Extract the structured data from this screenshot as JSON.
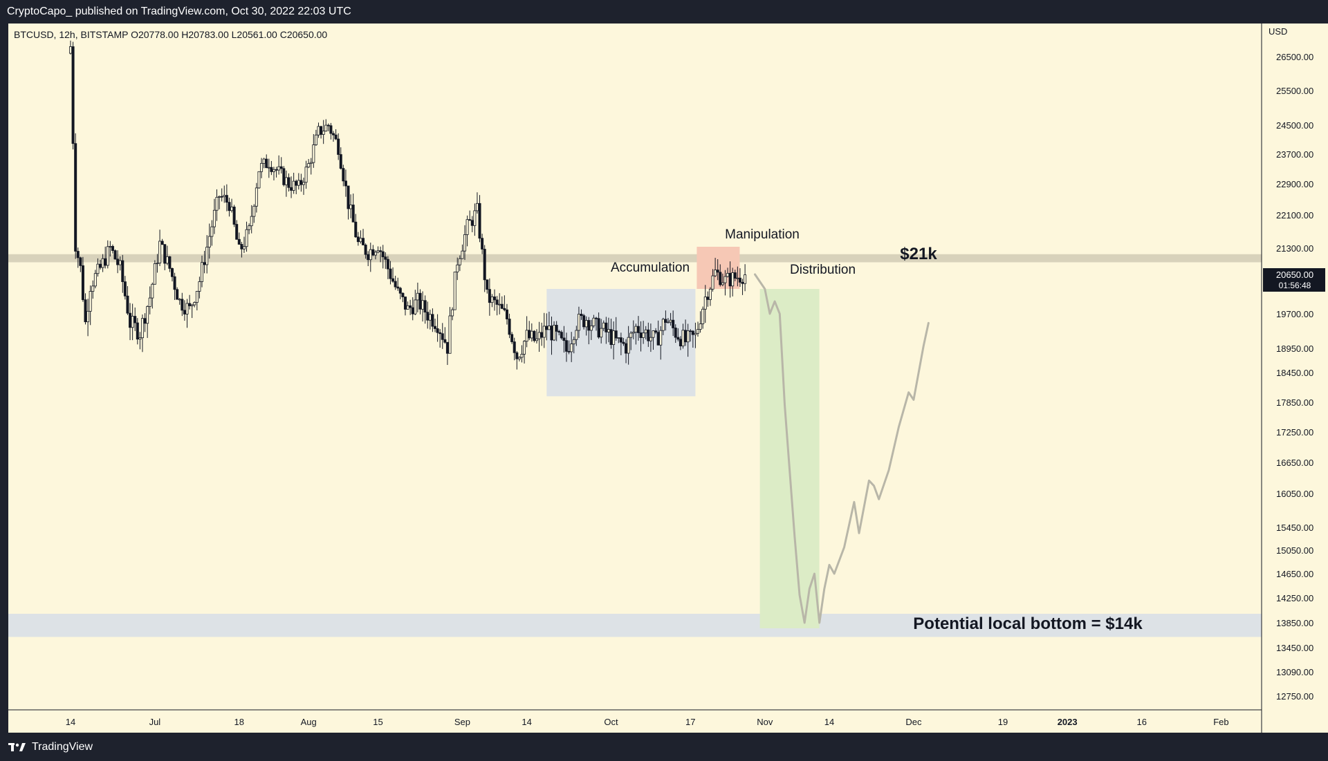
{
  "header": {
    "publisher": "CryptoCapo_ published on TradingView.com, Oct 30, 2022 22:03 UTC"
  },
  "footer": {
    "brand": "TradingView"
  },
  "chart_data": {
    "type": "candlestick",
    "symbol_line": "BTCUSD, 12h, BITSTAMP  O20778.00  H20783.00  L20561.00  C20650.00",
    "open": 20778.0,
    "high": 20783.0,
    "low": 20561.0,
    "close": 20650.0,
    "currency_label": "USD",
    "last_price_label": "20650.00",
    "countdown_label": "01:56:48",
    "y_ticks": [
      "26500.00",
      "25500.00",
      "24500.00",
      "23700.00",
      "22900.00",
      "22100.00",
      "21300.00",
      "19700.00",
      "18950.00",
      "18450.00",
      "17850.00",
      "17250.00",
      "16650.00",
      "16050.00",
      "15450.00",
      "15050.00",
      "14650.00",
      "14250.00",
      "13850.00",
      "13450.00",
      "13090.00",
      "12750.00"
    ],
    "x_ticks": [
      {
        "label": "14",
        "bold": false
      },
      {
        "label": "Jul",
        "bold": false
      },
      {
        "label": "18",
        "bold": false
      },
      {
        "label": "Aug",
        "bold": false
      },
      {
        "label": "15",
        "bold": false
      },
      {
        "label": "Sep",
        "bold": false
      },
      {
        "label": "14",
        "bold": false
      },
      {
        "label": "Oct",
        "bold": false
      },
      {
        "label": "17",
        "bold": false
      },
      {
        "label": "Nov",
        "bold": false
      },
      {
        "label": "14",
        "bold": false
      },
      {
        "label": "Dec",
        "bold": false
      },
      {
        "label": "19",
        "bold": false
      },
      {
        "label": "2023",
        "bold": true
      },
      {
        "label": "16",
        "bold": false
      },
      {
        "label": "Feb",
        "bold": false
      }
    ],
    "annotations": {
      "accumulation": "Accumulation",
      "manipulation": "Manipulation",
      "distribution": "Distribution",
      "resistance": "$21k",
      "bottom": "Potential local bottom = $14k"
    },
    "zones": {
      "resistance_band": [
        20950,
        21150
      ],
      "support_band": [
        13800,
        13950
      ],
      "accumulation_range": [
        18250,
        20300
      ],
      "manipulation_range": [
        20300,
        21300
      ],
      "distribution_range": [
        13850,
        20300
      ]
    },
    "colors": {
      "background": "#fdf7dc",
      "candle": "#131722",
      "resistance_band": "#d8d2bb",
      "accumulation_box": "#dde2e6",
      "manipulation_box": "#f6c8b5",
      "distribution_box": "#dcecc6",
      "support_band": "#dde2e6",
      "projection": "#b8b6a8"
    },
    "projection_path": [
      {
        "date": "2022-10-30",
        "price": 20650
      },
      {
        "date": "2022-11-01",
        "price": 20300
      },
      {
        "date": "2022-11-02",
        "price": 19700
      },
      {
        "date": "2022-11-03",
        "price": 20000
      },
      {
        "date": "2022-11-04",
        "price": 19700
      },
      {
        "date": "2022-11-05",
        "price": 17800
      },
      {
        "date": "2022-11-07",
        "price": 15300
      },
      {
        "date": "2022-11-08",
        "price": 14300
      },
      {
        "date": "2022-11-09",
        "price": 13850
      },
      {
        "date": "2022-11-10",
        "price": 14400
      },
      {
        "date": "2022-11-11",
        "price": 14650
      },
      {
        "date": "2022-11-12",
        "price": 13850
      },
      {
        "date": "2022-11-13",
        "price": 14400
      },
      {
        "date": "2022-11-14",
        "price": 14800
      },
      {
        "date": "2022-11-15",
        "price": 14650
      },
      {
        "date": "2022-11-17",
        "price": 15100
      },
      {
        "date": "2022-11-19",
        "price": 15900
      },
      {
        "date": "2022-11-20",
        "price": 15350
      },
      {
        "date": "2022-11-22",
        "price": 16300
      },
      {
        "date": "2022-11-23",
        "price": 16200
      },
      {
        "date": "2022-11-24",
        "price": 15950
      },
      {
        "date": "2022-11-26",
        "price": 16500
      },
      {
        "date": "2022-11-28",
        "price": 17350
      },
      {
        "date": "2022-11-30",
        "price": 18050
      },
      {
        "date": "2022-12-01",
        "price": 17900
      },
      {
        "date": "2022-12-03",
        "price": 19000
      },
      {
        "date": "2022-12-04",
        "price": 19500
      }
    ]
  }
}
